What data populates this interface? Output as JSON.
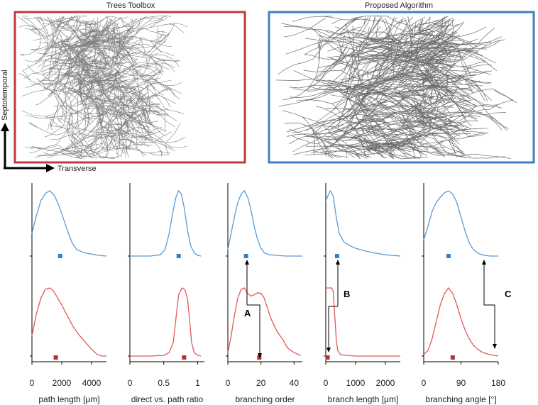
{
  "panels": {
    "left_title": "Trees Toolbox",
    "right_title": "Proposed Algorithm",
    "left_frame_color": "#c0393b",
    "right_frame_color": "#3f7fbf",
    "tree_line_color": "#555555"
  },
  "axes_labels": {
    "vertical": "Septotemporal",
    "horizontal": "Transverse"
  },
  "annotations": {
    "A": "A",
    "B": "B",
    "C": "C"
  },
  "colors": {
    "proposed": "#5b9bd5",
    "proposed_marker": "#3d7fbf",
    "toolbox": "#e0595a",
    "toolbox_marker": "#b03232"
  },
  "chart_data": [
    {
      "type": "line",
      "xlabel": "path length [μm]",
      "xticks": [
        "0",
        "2000",
        "4000"
      ],
      "xlim": [
        0,
        5000
      ],
      "series": [
        {
          "x": [
            0,
            300,
            600,
            900,
            1200,
            1500,
            1800,
            2100,
            2400,
            2700,
            3000,
            3500,
            4000,
            4500,
            5000
          ],
          "y": [
            0.35,
            0.62,
            0.85,
            0.96,
            1.0,
            0.93,
            0.78,
            0.58,
            0.38,
            0.2,
            0.1,
            0.05,
            0.03,
            0.01,
            0.0
          ],
          "marker_x": 1900
        },
        {
          "x": [
            0,
            300,
            600,
            900,
            1200,
            1400,
            1600,
            2000,
            2400,
            2800,
            3200,
            3600,
            4000,
            4400,
            4700,
            5000
          ],
          "y": [
            0.3,
            0.62,
            0.85,
            0.98,
            1.0,
            0.97,
            0.9,
            0.75,
            0.58,
            0.42,
            0.3,
            0.2,
            0.1,
            0.02,
            0.0,
            0.0
          ],
          "marker_x": 1600
        }
      ]
    },
    {
      "type": "line",
      "xlabel": "direct vs. path ratio",
      "xticks": [
        "0",
        "0.5",
        "1"
      ],
      "xlim": [
        0,
        1.1
      ],
      "series": [
        {
          "x": [
            0,
            0.3,
            0.45,
            0.52,
            0.58,
            0.63,
            0.68,
            0.72,
            0.76,
            0.8,
            0.85,
            0.9,
            0.95,
            1.0,
            1.05
          ],
          "y": [
            0,
            0,
            0.02,
            0.1,
            0.35,
            0.65,
            0.9,
            1.0,
            0.95,
            0.75,
            0.4,
            0.15,
            0.05,
            0.01,
            0
          ],
          "marker_x": 0.72
        },
        {
          "x": [
            0,
            0.3,
            0.5,
            0.58,
            0.64,
            0.68,
            0.72,
            0.77,
            0.81,
            0.85,
            0.88,
            0.91,
            0.95,
            1.0,
            1.05
          ],
          "y": [
            0,
            0,
            0.01,
            0.05,
            0.2,
            0.55,
            0.9,
            1.0,
            0.98,
            0.85,
            0.55,
            0.2,
            0.05,
            0.01,
            0
          ],
          "marker_x": 0.8
        }
      ]
    },
    {
      "type": "line",
      "xlabel": "branching order",
      "xticks": [
        "0",
        "20",
        "40"
      ],
      "xlim": [
        0,
        45
      ],
      "series": [
        {
          "x": [
            0,
            2,
            4,
            6,
            8,
            10,
            12,
            14,
            16,
            18,
            20,
            22,
            25,
            30,
            35,
            40,
            45
          ],
          "y": [
            0.1,
            0.35,
            0.6,
            0.82,
            0.95,
            1.0,
            0.9,
            0.7,
            0.45,
            0.25,
            0.12,
            0.05,
            0.02,
            0.01,
            0,
            0,
            0
          ],
          "marker_x": 11
        },
        {
          "x": [
            0,
            2,
            4,
            6,
            8,
            10,
            12,
            14,
            16,
            18,
            20,
            22,
            24,
            26,
            28,
            30,
            33,
            36,
            40,
            44
          ],
          "y": [
            0.05,
            0.3,
            0.6,
            0.85,
            0.98,
            1.0,
            0.92,
            0.88,
            0.9,
            0.93,
            0.92,
            0.85,
            0.7,
            0.55,
            0.45,
            0.35,
            0.25,
            0.12,
            0.05,
            0.01
          ],
          "marker_x": 19
        }
      ]
    },
    {
      "type": "line",
      "xlabel": "branch length [μm]",
      "xticks": [
        "0",
        "1000",
        "2000"
      ],
      "xlim": [
        0,
        2500
      ],
      "series": [
        {
          "x": [
            0,
            50,
            150,
            250,
            350,
            450,
            600,
            800,
            1000,
            1300,
            1600,
            2000,
            2500
          ],
          "y": [
            0.85,
            0.9,
            1.0,
            0.92,
            0.6,
            0.35,
            0.22,
            0.16,
            0.12,
            0.08,
            0.05,
            0.02,
            0.0
          ],
          "marker_x": 380
        },
        {
          "x": [
            0,
            100,
            200,
            250,
            300,
            350,
            400,
            500,
            700,
            1000,
            1500,
            2000,
            2500
          ],
          "y": [
            1.0,
            1.0,
            1.0,
            0.95,
            0.6,
            0.25,
            0.08,
            0.02,
            0.01,
            0,
            0,
            0,
            0
          ],
          "marker_x": 60
        }
      ]
    },
    {
      "type": "line",
      "xlabel": "branching angle [°]",
      "xticks": [
        "0",
        "90",
        "180"
      ],
      "xlim": [
        0,
        180
      ],
      "series": [
        {
          "x": [
            0,
            10,
            20,
            30,
            40,
            50,
            60,
            70,
            80,
            90,
            100,
            110,
            120,
            130,
            140,
            150,
            160,
            170,
            180
          ],
          "y": [
            0.25,
            0.45,
            0.68,
            0.82,
            0.9,
            0.97,
            1.0,
            0.95,
            0.82,
            0.6,
            0.38,
            0.2,
            0.1,
            0.05,
            0.02,
            0.01,
            0,
            0,
            0
          ],
          "marker_x": 60
        },
        {
          "x": [
            0,
            10,
            20,
            30,
            40,
            50,
            60,
            70,
            80,
            90,
            100,
            110,
            120,
            130,
            140,
            150,
            160,
            170,
            180
          ],
          "y": [
            0.02,
            0.08,
            0.25,
            0.5,
            0.75,
            0.92,
            1.0,
            0.92,
            0.75,
            0.55,
            0.38,
            0.25,
            0.16,
            0.1,
            0.06,
            0.04,
            0.02,
            0.01,
            0
          ],
          "marker_x": 70
        }
      ]
    }
  ]
}
